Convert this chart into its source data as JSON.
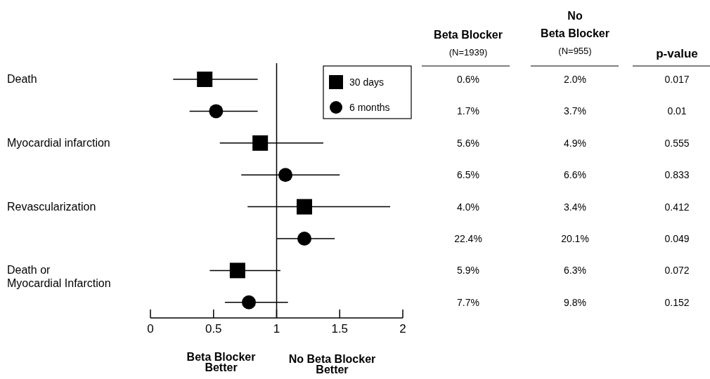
{
  "chart_data": {
    "type": "scatter",
    "orientation": "horizontal",
    "categories": [
      "Death",
      null,
      "Myocardial infarction",
      null,
      "Revascularization",
      null,
      "Death or\nMyocardial Infarction",
      null
    ],
    "series": [
      {
        "name": "30 days",
        "color": "#000000",
        "marker": "square",
        "values": [
          0.43,
          null,
          0.87,
          null,
          1.22,
          null,
          0.69,
          null
        ],
        "errors": [
          [
            0.18,
            0.85
          ],
          null,
          [
            0.55,
            1.37
          ],
          null,
          [
            0.77,
            1.9
          ],
          null,
          [
            0.47,
            1.03
          ],
          null
        ]
      },
      {
        "name": "6 months",
        "color": "#000000",
        "marker": "circle",
        "values": [
          null,
          0.52,
          null,
          1.07,
          null,
          1.22,
          null,
          0.78
        ],
        "errors": [
          null,
          [
            0.31,
            0.85
          ],
          null,
          [
            0.72,
            1.5
          ],
          null,
          [
            1.0,
            1.46
          ],
          null,
          [
            0.59,
            1.09
          ]
        ]
      }
    ],
    "xlim": [
      0,
      2
    ],
    "xticks": [
      0,
      0.5,
      1,
      {
        "value": 1.5,
        "label": "1.5"
      },
      2
    ],
    "ref_lines": [
      {
        "axis": "x",
        "value": 1
      }
    ],
    "legend": "top right",
    "grid": false,
    "annotations": [
      "Beta Blocker\nBetter",
      "No Beta Blocker\nBetter",
      "Beta Blocker",
      "(N=1939)",
      "No\nBeta Blocker",
      "(N=955)",
      "p-value",
      "0.6%",
      "2.0%",
      "0.017",
      "1.7%",
      "3.7%",
      "0.01",
      "5.6%",
      "4.9%",
      "0.555",
      "6.5%",
      "6.6%",
      "0.833",
      "4.0%",
      "3.4%",
      "0.412",
      "22.4%",
      "20.1%",
      "0.049",
      "5.9%",
      "6.3%",
      "0.072",
      "7.7%",
      "9.8%",
      "0.152"
    ]
  }
}
